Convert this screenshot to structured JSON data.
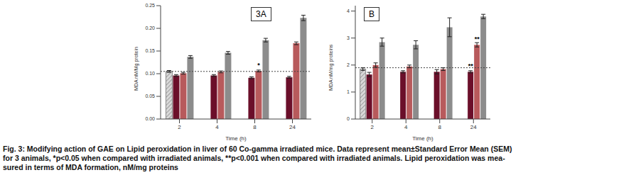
{
  "chart_data": [
    {
      "type": "bar",
      "panel_label": "3A",
      "y_label": "MDA nM/Mg protein",
      "x_label": "Time (h)",
      "categories": [
        "2",
        "4",
        "8",
        "24"
      ],
      "ylim": [
        0,
        0.25
      ],
      "yticks": [
        {
          "value": 0,
          "label": "0.00"
        },
        {
          "value": 0.05,
          "label": "0.05"
        },
        {
          "value": 0.1,
          "label": "0.10"
        },
        {
          "value": 0.15,
          "label": "0.15"
        },
        {
          "value": 0.2,
          "label": "0.20"
        },
        {
          "value": 0.25,
          "label": "0.25"
        }
      ],
      "reference_value": 0.105,
      "series": [
        {
          "color": "#d9d9d9",
          "values": [
            0.105,
            null,
            null,
            null
          ],
          "errors": [
            0.002,
            null,
            null,
            null
          ]
        },
        {
          "color": "#6b0f2a",
          "values": [
            0.096,
            0.096,
            0.091,
            0.092
          ],
          "errors": [
            0.002,
            0.002,
            0.002,
            0.002
          ]
        },
        {
          "color": "#b85a5c",
          "values": [
            0.101,
            0.104,
            0.106,
            0.167
          ],
          "errors": [
            0.002,
            0.002,
            0.002,
            0.003
          ]
        },
        {
          "color": "#8c8c8c",
          "values": [
            0.137,
            0.146,
            0.174,
            0.223
          ],
          "errors": [
            0.003,
            0.003,
            0.004,
            0.006
          ]
        }
      ],
      "annotations": [
        {
          "text": "*",
          "series": 2,
          "category": "8"
        }
      ]
    },
    {
      "type": "bar",
      "panel_label": "B",
      "y_label": "MDA nM/mg proteins",
      "x_label": "Time (h)",
      "categories": [
        "2",
        "4",
        "8",
        "24"
      ],
      "ylim": [
        0,
        4.2
      ],
      "yticks": [
        0,
        1,
        2,
        3,
        4
      ],
      "reference_value": 1.9,
      "series": [
        {
          "color": "#d9d9d9",
          "values": [
            1.85,
            null,
            null,
            null
          ],
          "errors": [
            0.05,
            null,
            null,
            null
          ]
        },
        {
          "color": "#6b0f2a",
          "values": [
            1.65,
            1.75,
            1.75,
            1.75
          ],
          "errors": [
            0.08,
            0.04,
            0.08,
            0.04
          ]
        },
        {
          "color": "#b85a5c",
          "values": [
            2.0,
            1.95,
            1.85,
            2.75
          ],
          "errors": [
            0.08,
            0.05,
            0.05,
            0.08
          ]
        },
        {
          "color": "#8c8c8c",
          "values": [
            2.85,
            2.75,
            3.4,
            3.8
          ],
          "errors": [
            0.15,
            0.15,
            0.35,
            0.08
          ]
        }
      ],
      "annotations": [
        {
          "text": "**",
          "series": 2,
          "category": "24"
        },
        {
          "text": "**",
          "series": 1,
          "category": "24"
        }
      ]
    }
  ],
  "caption": [
    "Fig. 3: Modifying action of GAE on Lipid peroxidation in liver of 60 Co-gamma irradiated mice. Data represent mean±Standard Error Mean (SEM)",
    "for 3 animals, *p<0.05 when compared with irradiated animals, **p<0.001 when compared with irradiated animals. Lipid peroxidation was mea-",
    "sured in terms of MDA formation, nM/mg proteins"
  ]
}
